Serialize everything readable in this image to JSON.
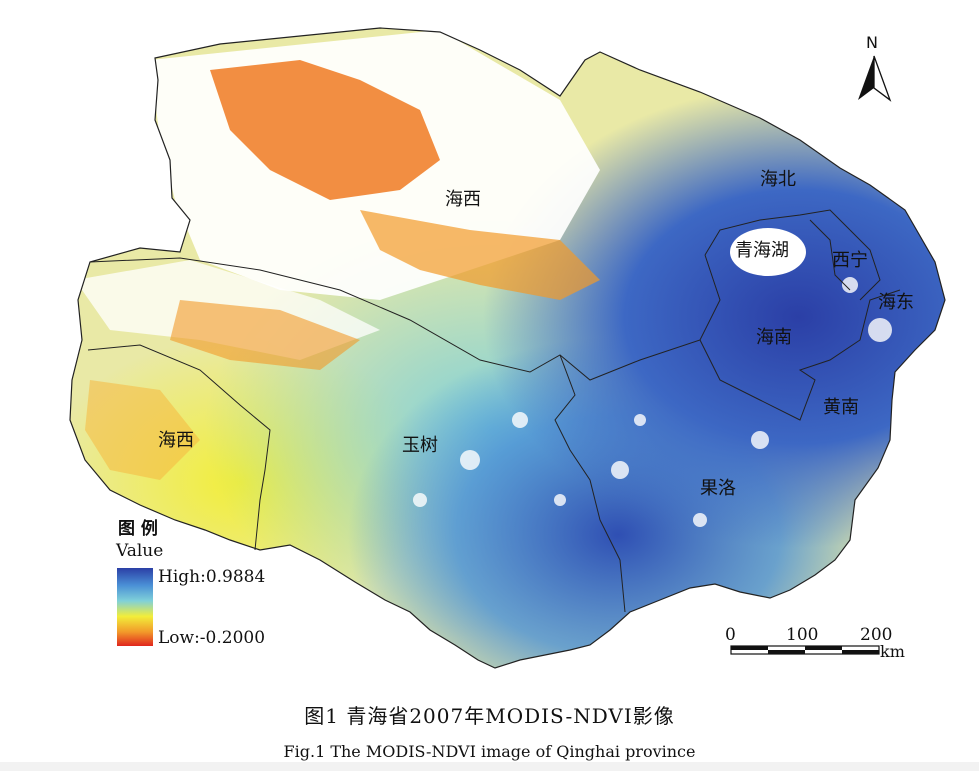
{
  "regions": [
    {
      "id": "haixi_north",
      "label": "海西"
    },
    {
      "id": "haixi_south",
      "label": "海西"
    },
    {
      "id": "yushu",
      "label": "玉树"
    },
    {
      "id": "guoluo",
      "label": "果洛"
    },
    {
      "id": "haibei",
      "label": "海北"
    },
    {
      "id": "qinghaihu",
      "label": "青海湖"
    },
    {
      "id": "xining",
      "label": "西宁"
    },
    {
      "id": "haidong",
      "label": "海东"
    },
    {
      "id": "hainan",
      "label": "海南"
    },
    {
      "id": "huangnan",
      "label": "黄南"
    }
  ],
  "north_arrow": {
    "label": "N"
  },
  "legend": {
    "title": "图 例",
    "subtitle": "Value",
    "high_label": "High:0.9884",
    "low_label": "Low:-0.2000",
    "high_value": 0.9884,
    "low_value": -0.2,
    "colors": [
      "#2b3fa6",
      "#4a8fd6",
      "#7fd0d9",
      "#f2ee3a",
      "#f29a2a",
      "#e0251e"
    ]
  },
  "scale_bar": {
    "ticks": [
      "0",
      "100",
      "200"
    ],
    "unit": "km"
  },
  "caption_zh": "图1  青海省2007年MODIS-NDVI影像",
  "caption_en": "Fig.1   The MODIS-NDVI image of Qinghai province"
}
